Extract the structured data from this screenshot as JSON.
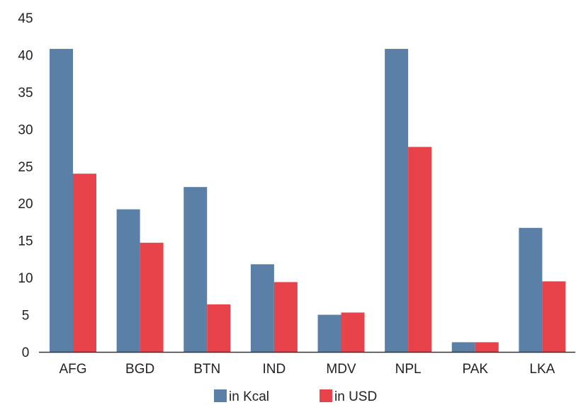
{
  "chart_data": {
    "type": "bar",
    "categories": [
      "AFG",
      "BGD",
      "BTN",
      "IND",
      "MDV",
      "NPL",
      "PAK",
      "LKA"
    ],
    "series": [
      {
        "name": "in Kcal",
        "color": "#5b80a8",
        "values": [
          40.8,
          19.2,
          22.2,
          11.8,
          5.0,
          40.8,
          1.3,
          16.7
        ]
      },
      {
        "name": "in USD",
        "color": "#e8424a",
        "values": [
          24.0,
          14.7,
          6.4,
          9.4,
          5.3,
          27.6,
          1.3,
          9.5
        ]
      }
    ],
    "title": "",
    "xlabel": "",
    "ylabel": "",
    "ylim": [
      0,
      45
    ],
    "yticks": [
      0,
      5,
      10,
      15,
      20,
      25,
      30,
      35,
      40,
      45
    ],
    "grid": false,
    "legend_position": "bottom"
  }
}
